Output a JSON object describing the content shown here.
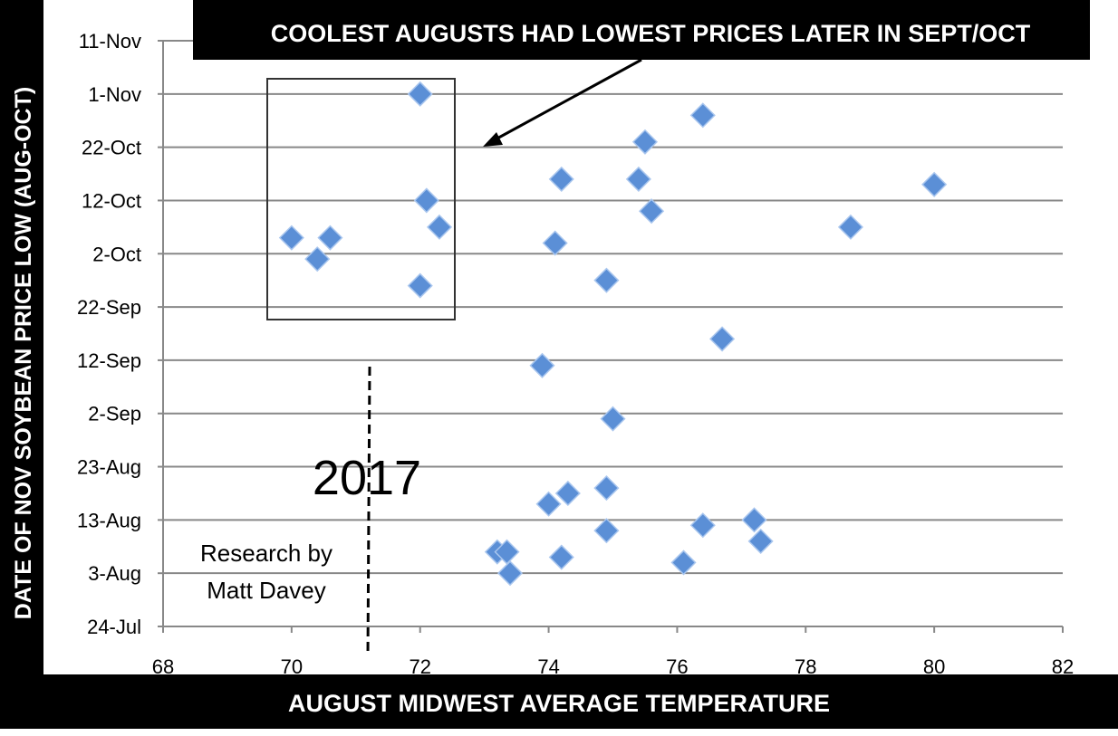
{
  "chart_data": {
    "type": "scatter",
    "title": "COOLEST  AUGUSTS HAD LOWEST PRICES LATER IN SEPT/OCT",
    "xlabel": "AUGUST MIDWEST AVERAGE TEMPERATURE",
    "ylabel": "DATE OF NOV SOYBEAN PRICE LOW (AUG-OCT)",
    "xlim": [
      68,
      82
    ],
    "xticks": [
      "68",
      "70",
      "72",
      "74",
      "76",
      "78",
      "80",
      "82"
    ],
    "yticks": [
      "24-Jul",
      "3-Aug",
      "13-Aug",
      "23-Aug",
      "2-Sep",
      "12-Sep",
      "22-Sep",
      "2-Oct",
      "12-Oct",
      "22-Oct",
      "1-Nov",
      "11-Nov"
    ],
    "ylim": [
      "24-Jul",
      "11-Nov"
    ],
    "grid": "horizontal",
    "marker_color": "#5b8fd6",
    "points": [
      {
        "x": 70.0,
        "y": "5-Oct"
      },
      {
        "x": 70.6,
        "y": "5-Oct"
      },
      {
        "x": 70.4,
        "y": "1-Oct"
      },
      {
        "x": 72.0,
        "y": "1-Nov"
      },
      {
        "x": 72.1,
        "y": "12-Oct"
      },
      {
        "x": 72.3,
        "y": "7-Oct"
      },
      {
        "x": 72.0,
        "y": "26-Sep"
      },
      {
        "x": 74.2,
        "y": "16-Oct"
      },
      {
        "x": 74.1,
        "y": "4-Oct"
      },
      {
        "x": 74.9,
        "y": "27-Sep"
      },
      {
        "x": 75.5,
        "y": "23-Oct"
      },
      {
        "x": 75.4,
        "y": "16-Oct"
      },
      {
        "x": 75.6,
        "y": "10-Oct"
      },
      {
        "x": 76.4,
        "y": "28-Oct"
      },
      {
        "x": 80.0,
        "y": "15-Oct"
      },
      {
        "x": 78.7,
        "y": "7-Oct"
      },
      {
        "x": 76.7,
        "y": "16-Sep"
      },
      {
        "x": 73.9,
        "y": "11-Sep"
      },
      {
        "x": 75.0,
        "y": "1-Sep"
      },
      {
        "x": 74.9,
        "y": "19-Aug"
      },
      {
        "x": 74.3,
        "y": "18-Aug"
      },
      {
        "x": 74.0,
        "y": "16-Aug"
      },
      {
        "x": 76.4,
        "y": "12-Aug"
      },
      {
        "x": 77.2,
        "y": "13-Aug"
      },
      {
        "x": 74.9,
        "y": "11-Aug"
      },
      {
        "x": 77.3,
        "y": "9-Aug"
      },
      {
        "x": 73.2,
        "y": "7-Aug"
      },
      {
        "x": 73.35,
        "y": "7-Aug"
      },
      {
        "x": 74.2,
        "y": "6-Aug"
      },
      {
        "x": 76.1,
        "y": "5-Aug"
      },
      {
        "x": 73.4,
        "y": "3-Aug"
      }
    ],
    "annotations": {
      "year_marker": "2017",
      "credit_line1": "Research by",
      "credit_line2": "Matt Davey"
    }
  }
}
